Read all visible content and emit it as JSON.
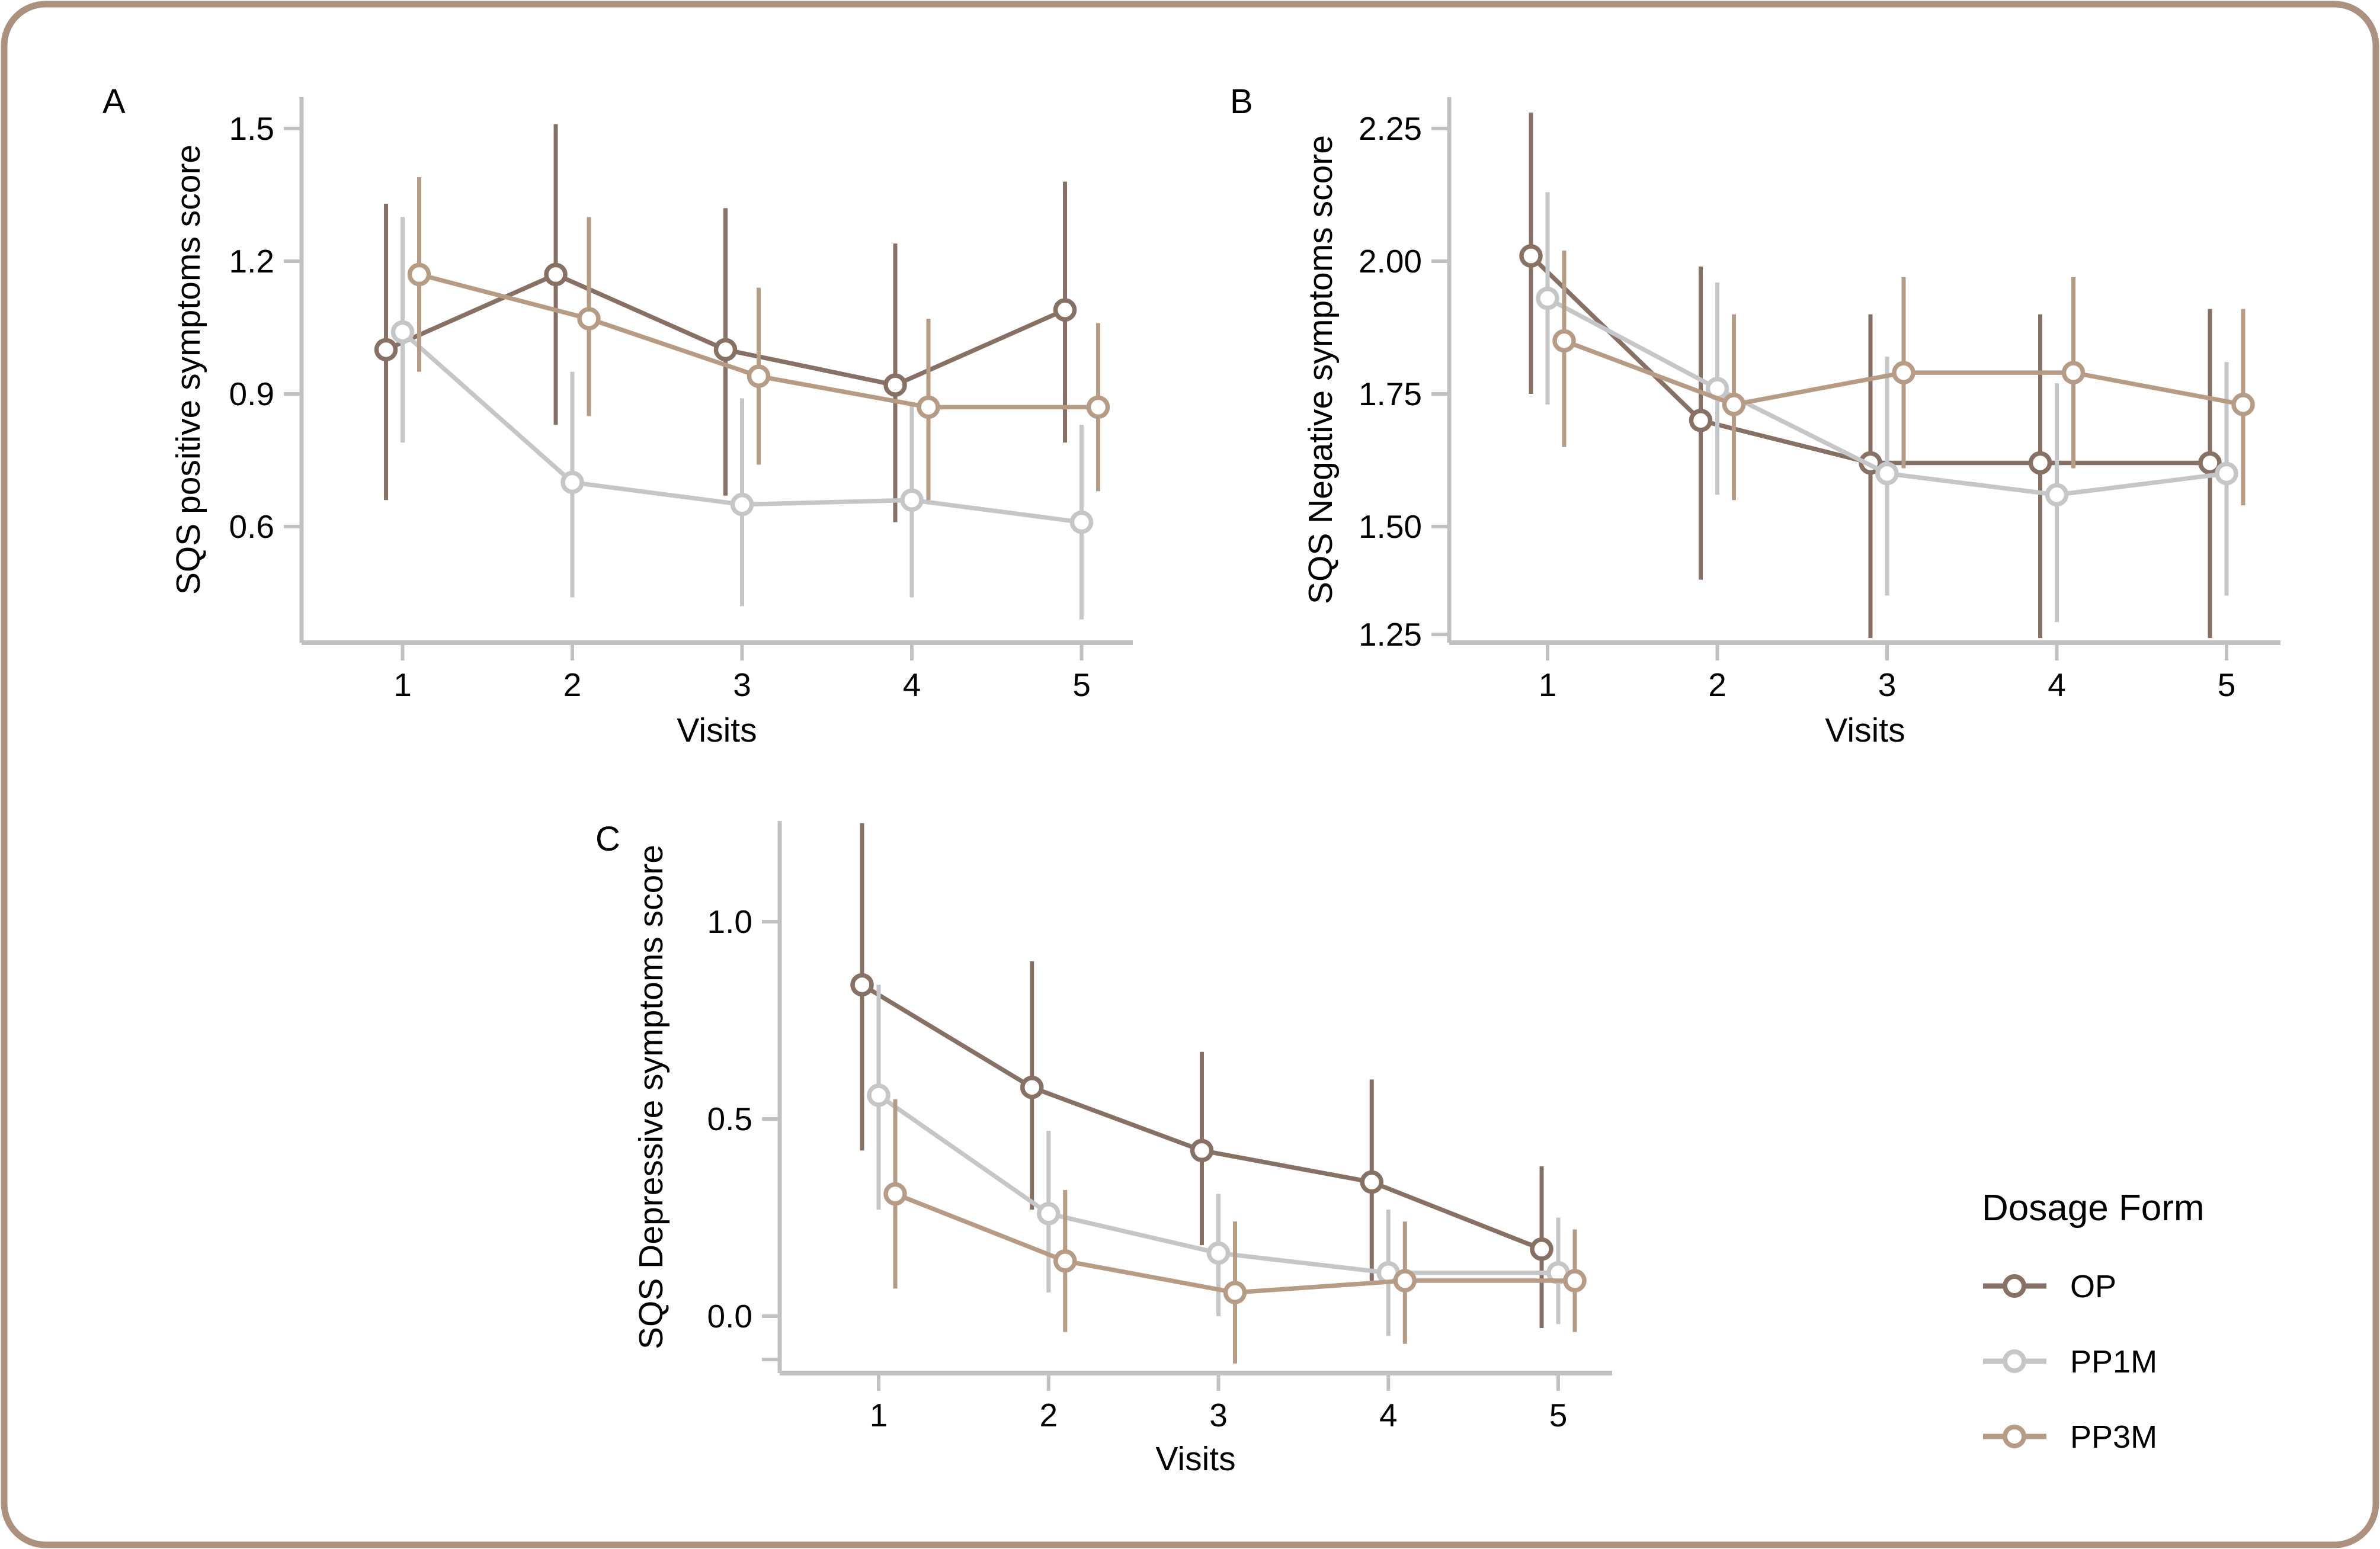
{
  "figure": {
    "background": "#ffffff",
    "border_color": "#ac917f",
    "axis_color": "#c1c1c1",
    "text_color": "#000000"
  },
  "legend": {
    "title": "Dosage Form",
    "position": "right-bottom",
    "items": [
      {
        "label": "OP",
        "color": "#877164"
      },
      {
        "label": "PP1M",
        "color": "#c5c6c8"
      },
      {
        "label": "PP3M",
        "color": "#b79c85"
      }
    ]
  },
  "chart_data": [
    {
      "type": "line",
      "panel": "A",
      "xlabel": "Visits",
      "ylabel": "SQS positive symptoms score",
      "x": [
        1,
        2,
        3,
        4,
        5
      ],
      "x_tick_labels": [
        "1",
        "2",
        "3",
        "4",
        "5"
      ],
      "ylim": [
        0.34,
        1.52
      ],
      "grid": false,
      "error_bars": true,
      "yticks": [
        {
          "value": 1.5,
          "label": "1.5"
        },
        {
          "value": 1.2,
          "label": "1.2"
        },
        {
          "value": 0.9,
          "label": "0.9"
        },
        {
          "value": 0.6,
          "label": "0.6"
        }
      ],
      "series": [
        {
          "name": "OP",
          "color": "#877164",
          "values": [
            1.0,
            1.17,
            1.0,
            0.92,
            1.09
          ],
          "err_lo": [
            0.66,
            0.83,
            0.67,
            0.61,
            0.79
          ],
          "err_hi": [
            1.33,
            1.51,
            1.32,
            1.24,
            1.38
          ]
        },
        {
          "name": "PP1M",
          "color": "#c5c6c8",
          "values": [
            1.04,
            0.7,
            0.65,
            0.66,
            0.61
          ],
          "err_lo": [
            0.79,
            0.44,
            0.42,
            0.44,
            0.39
          ],
          "err_hi": [
            1.3,
            0.95,
            0.89,
            0.88,
            0.83
          ]
        },
        {
          "name": "PP3M",
          "color": "#b79c85",
          "values": [
            1.17,
            1.07,
            0.94,
            0.87,
            0.87
          ],
          "err_lo": [
            0.95,
            0.85,
            0.74,
            0.66,
            0.68
          ],
          "err_hi": [
            1.39,
            1.3,
            1.14,
            1.07,
            1.06
          ]
        }
      ]
    },
    {
      "type": "line",
      "panel": "B",
      "xlabel": "Visits",
      "ylabel": "SQS Negative symptoms score",
      "x": [
        1,
        2,
        3,
        4,
        5
      ],
      "x_tick_labels": [
        "1",
        "2",
        "3",
        "4",
        "5"
      ],
      "ylim": [
        1.28,
        2.31
      ],
      "grid": false,
      "error_bars": true,
      "yticks": [
        {
          "value": 2.25,
          "label": "2.25"
        },
        {
          "value": 2.0,
          "label": "2.00"
        },
        {
          "value": 1.75,
          "label": "1.75"
        },
        {
          "value": 1.5,
          "label": "1.50"
        },
        {
          "value": 1.25,
          "label": "1.25"
        }
      ],
      "series": [
        {
          "name": "OP",
          "color": "#877164",
          "values": [
            2.01,
            1.7,
            1.62,
            1.62,
            1.62
          ],
          "err_lo": [
            1.75,
            1.4,
            1.29,
            1.29,
            1.29
          ],
          "err_hi": [
            2.28,
            1.99,
            1.9,
            1.9,
            1.91
          ]
        },
        {
          "name": "PP1M",
          "color": "#c5c6c8",
          "values": [
            1.93,
            1.76,
            1.6,
            1.56,
            1.6
          ],
          "err_lo": [
            1.73,
            1.56,
            1.37,
            1.32,
            1.37
          ],
          "err_hi": [
            2.13,
            1.96,
            1.82,
            1.77,
            1.81
          ]
        },
        {
          "name": "PP3M",
          "color": "#b79c85",
          "values": [
            1.85,
            1.73,
            1.79,
            1.79,
            1.73
          ],
          "err_lo": [
            1.65,
            1.55,
            1.61,
            1.61,
            1.54
          ],
          "err_hi": [
            2.02,
            1.9,
            1.97,
            1.97,
            1.91
          ]
        }
      ]
    },
    {
      "type": "line",
      "panel": "C",
      "xlabel": "Visits",
      "ylabel": "SQS Depressive symptoms score",
      "x": [
        1,
        2,
        3,
        4,
        5
      ],
      "x_tick_labels": [
        "1",
        "2",
        "3",
        "4",
        "5"
      ],
      "ylim": [
        -0.14,
        1.26
      ],
      "grid": false,
      "error_bars": true,
      "yticks": [
        {
          "value": 1.0,
          "label": "1.0"
        },
        {
          "value": 0.5,
          "label": "0.5"
        },
        {
          "value": 0.0,
          "label": "0.0"
        }
      ],
      "series": [
        {
          "name": "OP",
          "color": "#877164",
          "values": [
            0.84,
            0.58,
            0.42,
            0.34,
            0.17
          ],
          "err_lo": [
            0.42,
            0.27,
            0.18,
            0.09,
            -0.03
          ],
          "err_hi": [
            1.25,
            0.9,
            0.67,
            0.6,
            0.38
          ]
        },
        {
          "name": "PP1M",
          "color": "#c5c6c8",
          "values": [
            0.56,
            0.26,
            0.16,
            0.11,
            0.11
          ],
          "err_lo": [
            0.27,
            0.06,
            0.0,
            -0.05,
            -0.02
          ],
          "err_hi": [
            0.84,
            0.47,
            0.31,
            0.27,
            0.25
          ]
        },
        {
          "name": "PP3M",
          "color": "#b79c85",
          "values": [
            0.31,
            0.14,
            0.06,
            0.09,
            0.09
          ],
          "err_lo": [
            0.07,
            -0.04,
            -0.12,
            -0.07,
            -0.04
          ],
          "err_hi": [
            0.55,
            0.32,
            0.24,
            0.24,
            0.22
          ]
        }
      ]
    }
  ]
}
